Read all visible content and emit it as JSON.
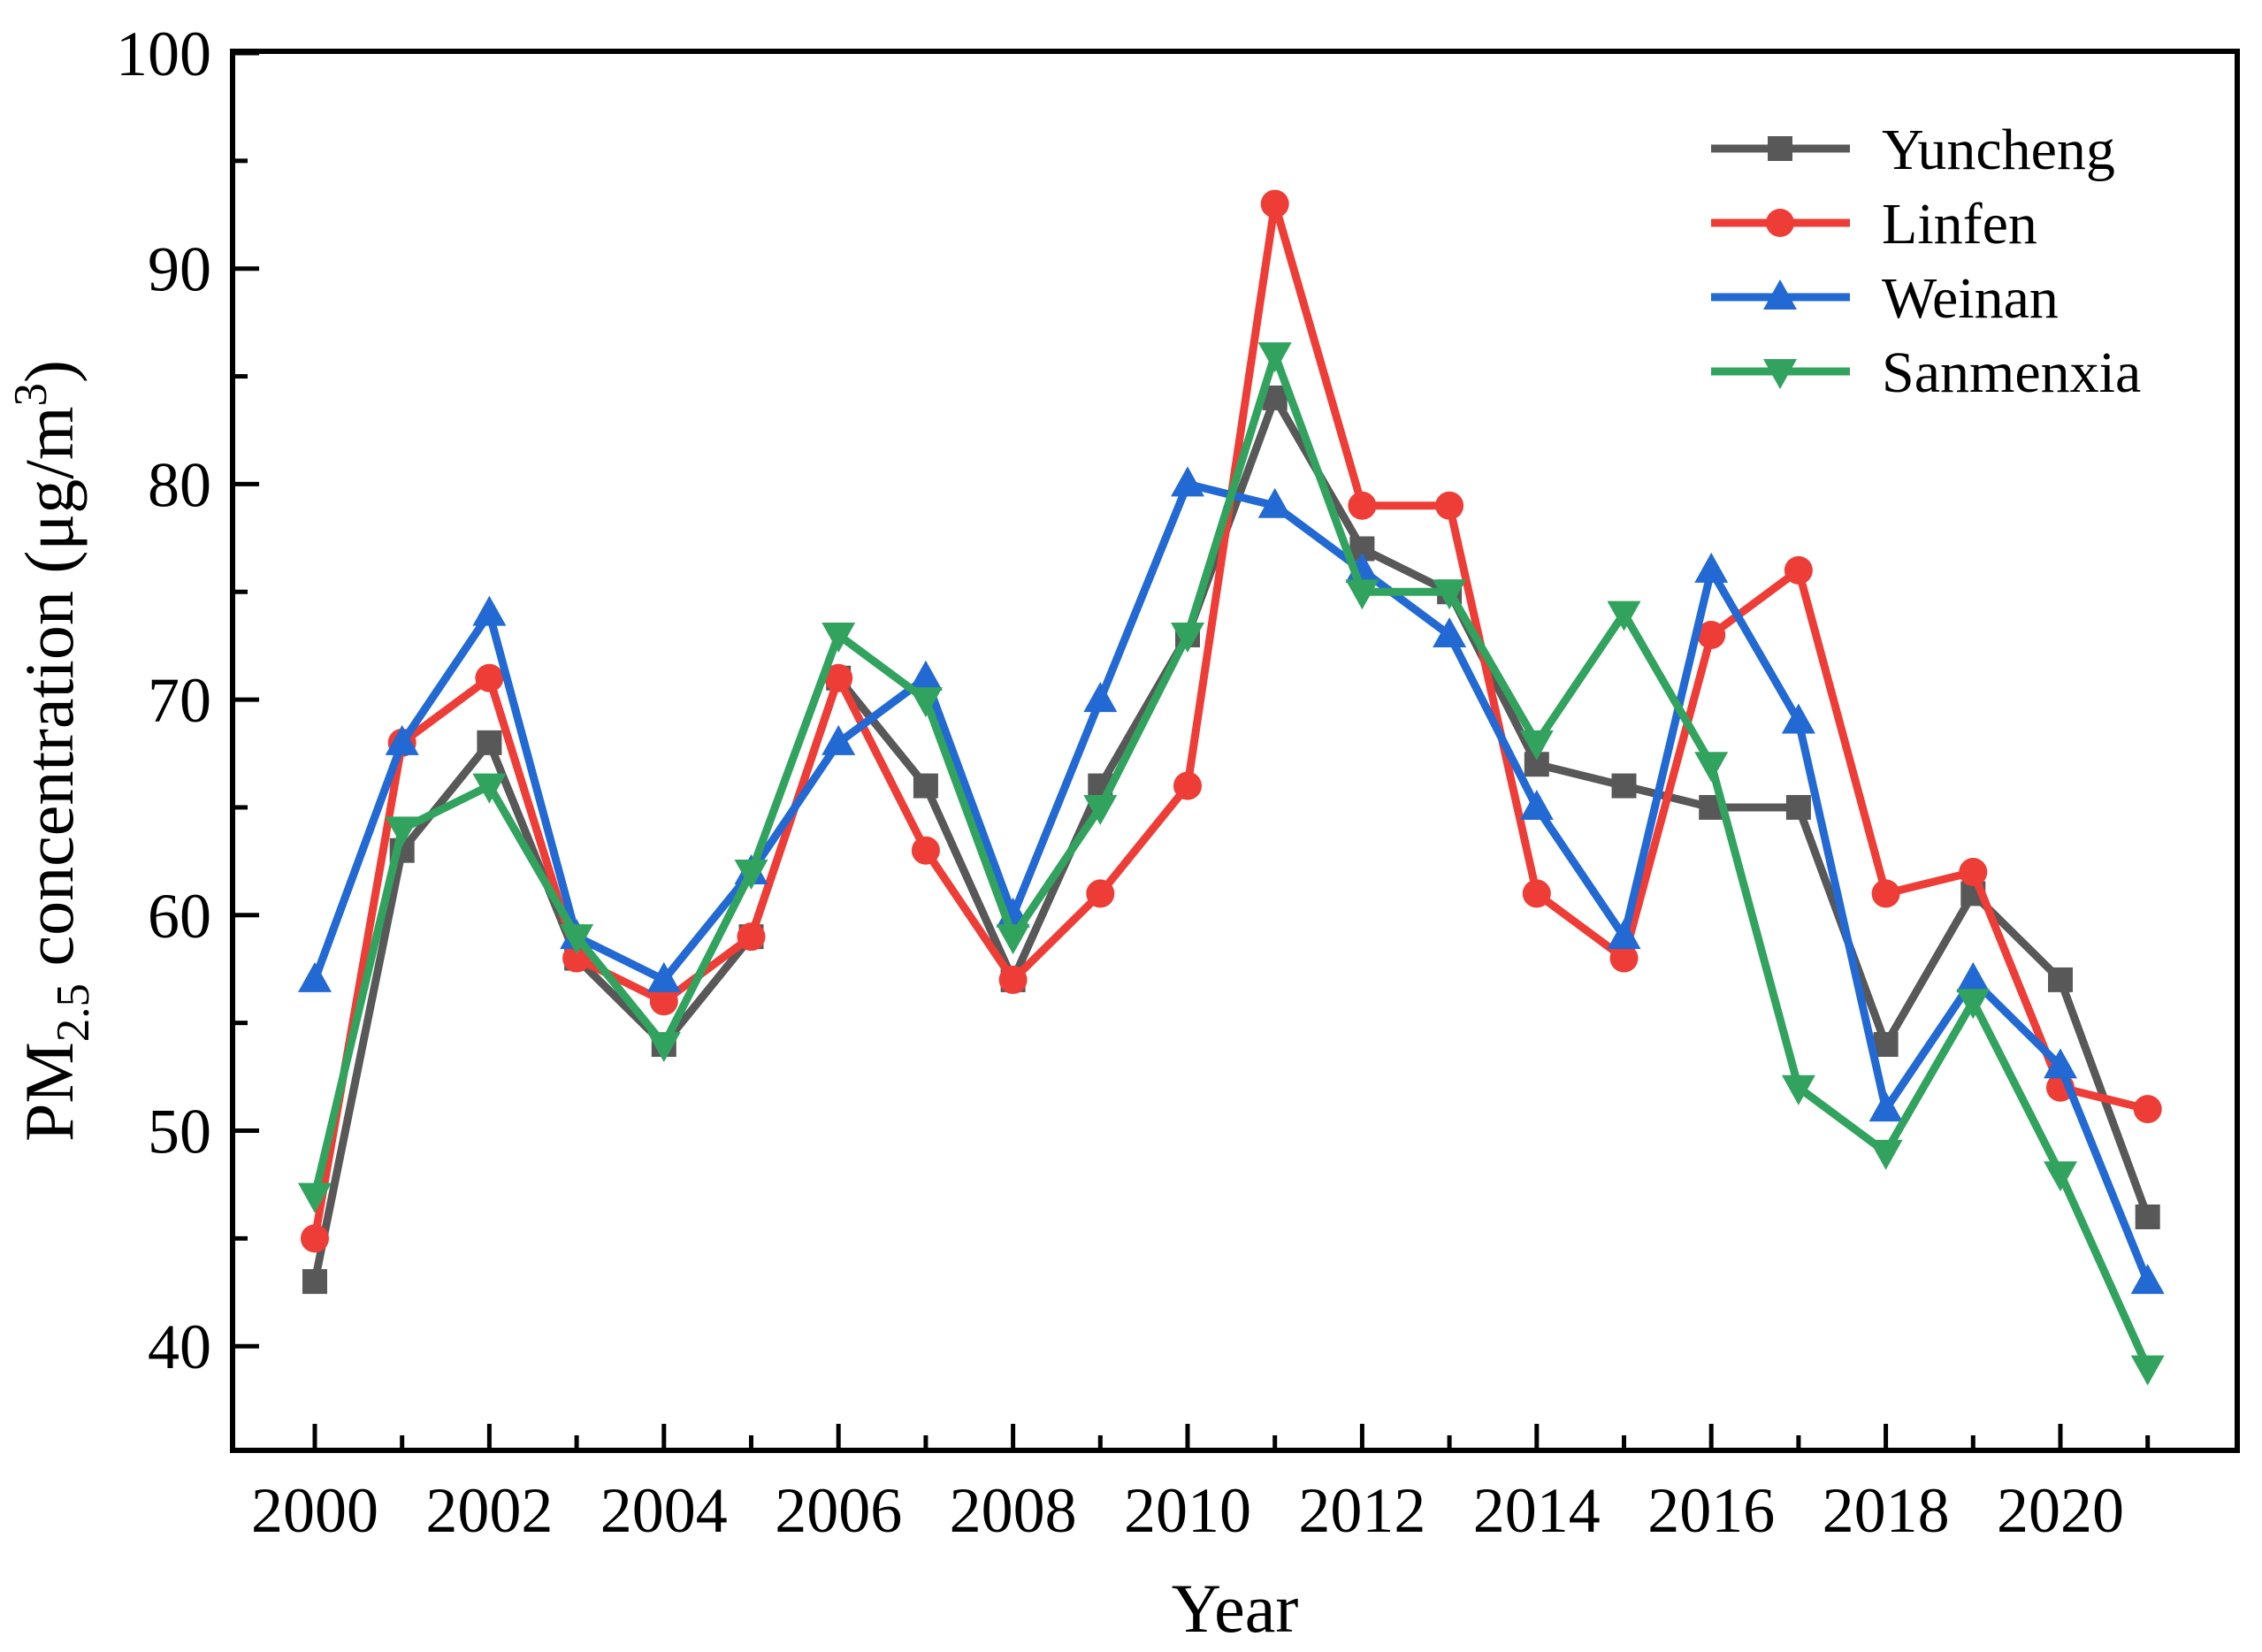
{
  "figure": {
    "background": "#ffffff",
    "text_color": "#000000"
  },
  "axes": {
    "x": {
      "title": "Year",
      "major_ticks": [
        2000,
        2002,
        2004,
        2006,
        2008,
        2010,
        2012,
        2014,
        2016,
        2018,
        2020
      ],
      "minor_ticks": [
        2001,
        2003,
        2005,
        2007,
        2009,
        2011,
        2013,
        2015,
        2017,
        2019,
        2021
      ]
    },
    "y": {
      "title_parts": {
        "pre": "PM",
        "sub": "2.5",
        "mid": " concentration (μg/m",
        "sup": "3",
        "post": ")"
      },
      "major_ticks": [
        40,
        50,
        60,
        70,
        80,
        90,
        100
      ],
      "minor_ticks": [
        45,
        55,
        65,
        75,
        85,
        95
      ]
    }
  },
  "legend": {
    "position": "top-right-inside",
    "entries": [
      {
        "label": "Yuncheng",
        "marker": "square",
        "color": "#585858"
      },
      {
        "label": "Linfen",
        "marker": "circle",
        "color": "#ee3d36"
      },
      {
        "label": "Weinan",
        "marker": "triangle-up",
        "color": "#2269d3"
      },
      {
        "label": "Sanmenxia",
        "marker": "triangle-down",
        "color": "#31a35e"
      }
    ]
  },
  "chart_data": {
    "type": "line",
    "title": "",
    "xlabel": "Year",
    "ylabel": "PM2.5 concentration (μg/m³)",
    "x": [
      2000,
      2001,
      2002,
      2003,
      2004,
      2005,
      2006,
      2007,
      2008,
      2009,
      2010,
      2011,
      2012,
      2013,
      2014,
      2015,
      2016,
      2017,
      2018,
      2019,
      2020,
      2021
    ],
    "series": [
      {
        "name": "Yuncheng",
        "color": "#585858",
        "marker": "square",
        "values": [
          43,
          63,
          68,
          58,
          54,
          59,
          71,
          66,
          57,
          66,
          73,
          84,
          77,
          75,
          67,
          66,
          65,
          65,
          54,
          61,
          57,
          46
        ]
      },
      {
        "name": "Linfen",
        "color": "#ee3d36",
        "marker": "circle",
        "values": [
          45,
          68,
          71,
          58,
          56,
          59,
          71,
          63,
          57,
          61,
          66,
          93,
          79,
          79,
          61,
          58,
          73,
          76,
          61,
          62,
          52,
          51
        ]
      },
      {
        "name": "Weinan",
        "color": "#2269d3",
        "marker": "triangle-up",
        "values": [
          57,
          68,
          74,
          59,
          57,
          62,
          68,
          71,
          60,
          70,
          80,
          79,
          76,
          73,
          65,
          59,
          76,
          69,
          51,
          57,
          53,
          43
        ]
      },
      {
        "name": "Sanmenxia",
        "color": "#31a35e",
        "marker": "triangle-down",
        "values": [
          47,
          64,
          66,
          59,
          54,
          62,
          73,
          70,
          59,
          65,
          73,
          86,
          75,
          75,
          68,
          74,
          67,
          52,
          49,
          56,
          48,
          39
        ]
      }
    ],
    "xlim": [
      1999.05,
      2021.05
    ],
    "ylim": [
      35.2,
      100
    ],
    "grid": false,
    "legend_position": "top-right"
  }
}
